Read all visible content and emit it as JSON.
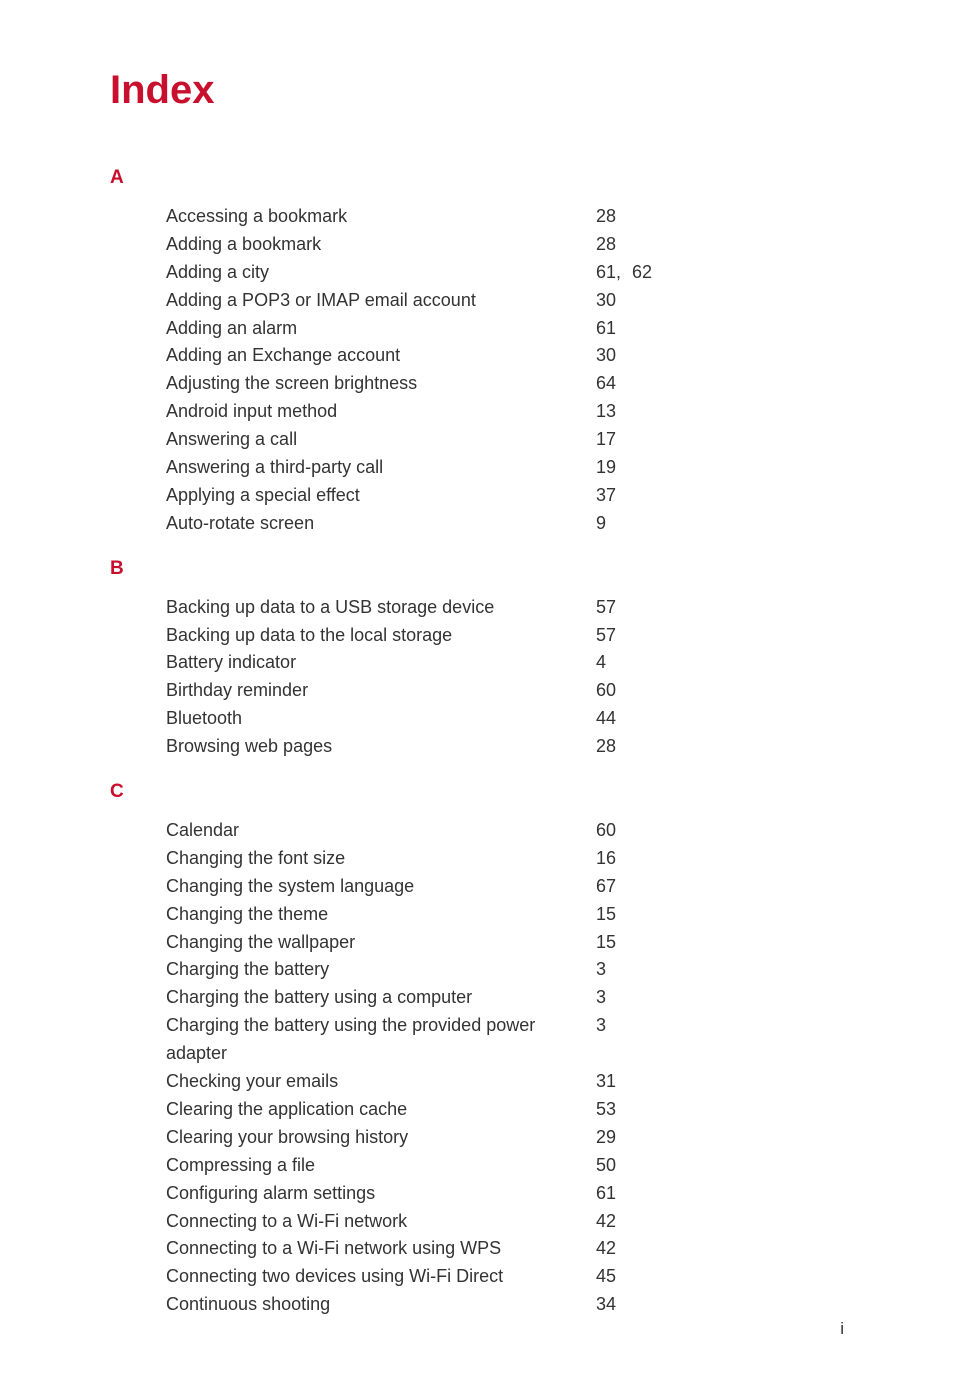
{
  "title": "Index",
  "footer": "i",
  "accent_color": "#c8102e",
  "text_color": "#333333",
  "background_color": "#ffffff",
  "title_fontsize": 40,
  "letter_fontsize": 19,
  "entry_fontsize": 18,
  "sections": [
    {
      "letter": "A",
      "entries": [
        {
          "text": "Accessing a bookmark",
          "pages": [
            "28"
          ]
        },
        {
          "text": "Adding a bookmark",
          "pages": [
            "28"
          ]
        },
        {
          "text": "Adding a city",
          "pages": [
            "61,",
            "62"
          ]
        },
        {
          "text": "Adding a POP3 or IMAP email account",
          "pages": [
            "30"
          ]
        },
        {
          "text": "Adding an alarm",
          "pages": [
            "61"
          ]
        },
        {
          "text": "Adding an Exchange account",
          "pages": [
            "30"
          ]
        },
        {
          "text": "Adjusting the screen brightness",
          "pages": [
            "64"
          ]
        },
        {
          "text": "Android input method",
          "pages": [
            "13"
          ]
        },
        {
          "text": "Answering a call",
          "pages": [
            "17"
          ]
        },
        {
          "text": "Answering a third-party call",
          "pages": [
            "19"
          ]
        },
        {
          "text": "Applying a special effect",
          "pages": [
            "37"
          ]
        },
        {
          "text": "Auto-rotate screen",
          "pages": [
            "9"
          ]
        }
      ]
    },
    {
      "letter": "B",
      "entries": [
        {
          "text": "Backing up data to a USB storage device",
          "pages": [
            "57"
          ]
        },
        {
          "text": "Backing up data to the local storage",
          "pages": [
            "57"
          ]
        },
        {
          "text": "Battery indicator",
          "pages": [
            "4"
          ]
        },
        {
          "text": "Birthday reminder",
          "pages": [
            "60"
          ]
        },
        {
          "text": "Bluetooth",
          "pages": [
            "44"
          ]
        },
        {
          "text": "Browsing web pages",
          "pages": [
            "28"
          ]
        }
      ]
    },
    {
      "letter": "C",
      "entries": [
        {
          "text": "Calendar",
          "pages": [
            "60"
          ]
        },
        {
          "text": "Changing the font size",
          "pages": [
            "16"
          ]
        },
        {
          "text": "Changing the system language",
          "pages": [
            "67"
          ]
        },
        {
          "text": "Changing the theme",
          "pages": [
            "15"
          ]
        },
        {
          "text": "Changing the wallpaper",
          "pages": [
            "15"
          ]
        },
        {
          "text": "Charging the battery",
          "pages": [
            "3"
          ]
        },
        {
          "text": "Charging the battery using a computer",
          "pages": [
            "3"
          ]
        },
        {
          "text": "Charging the battery using the provided power adapter",
          "pages": [
            "3"
          ]
        },
        {
          "text": "Checking your emails",
          "pages": [
            "31"
          ]
        },
        {
          "text": "Clearing the application cache",
          "pages": [
            "53"
          ]
        },
        {
          "text": "Clearing your browsing history",
          "pages": [
            "29"
          ]
        },
        {
          "text": "Compressing a file",
          "pages": [
            "50"
          ]
        },
        {
          "text": "Configuring alarm settings",
          "pages": [
            "61"
          ]
        },
        {
          "text": "Connecting to a Wi-Fi network",
          "pages": [
            "42"
          ]
        },
        {
          "text": "Connecting to a Wi-Fi network using WPS",
          "pages": [
            "42"
          ]
        },
        {
          "text": "Connecting two devices using Wi-Fi Direct",
          "pages": [
            "45"
          ]
        },
        {
          "text": "Continuous shooting",
          "pages": [
            "34"
          ]
        }
      ]
    }
  ]
}
